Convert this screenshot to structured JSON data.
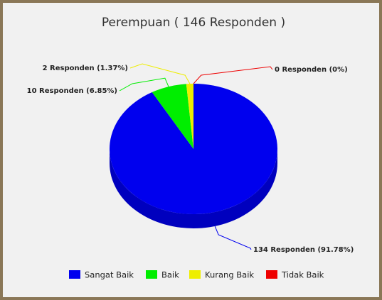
{
  "chart_data": {
    "type": "pie",
    "title": "Perempuan ( 146 Responden )",
    "categories": [
      "Sangat Baik",
      "Baik",
      "Kurang Baik",
      "Tidak Baik"
    ],
    "values": [
      134,
      10,
      2,
      0
    ],
    "value_labels": [
      "134 Responden (91.78%)",
      "10 Responden (6.85%)",
      "2 Responden (1.37%)",
      "0 Responden (0%)"
    ],
    "colors": [
      "#0000ee",
      "#00ee00",
      "#eeee00",
      "#ee0000"
    ],
    "legend": "bottom"
  }
}
